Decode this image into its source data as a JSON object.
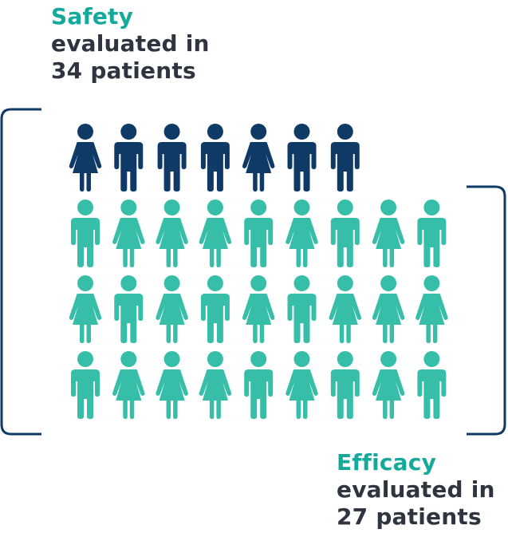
{
  "colors": {
    "accent": "#14a99a",
    "text_dark": "#2f3540",
    "safety_only": "#0f3a66",
    "both": "#37bea9",
    "bracket": "#0f3a66"
  },
  "safety": {
    "heading": "Safety",
    "line1": "evaluated in",
    "line2": "34 patients"
  },
  "efficacy": {
    "heading": "Efficacy",
    "line1": "evaluated in",
    "line2": "27 patients"
  },
  "figures": {
    "row1": [
      "female",
      "male",
      "male",
      "male",
      "female",
      "male",
      "male"
    ],
    "row2": [
      "male",
      "female",
      "female",
      "female",
      "male",
      "female",
      "male",
      "female",
      "male"
    ],
    "row3": [
      "female",
      "male",
      "female",
      "male",
      "female",
      "male",
      "female",
      "female",
      "female"
    ],
    "row4": [
      "male",
      "female",
      "female",
      "female",
      "male",
      "female",
      "male",
      "female",
      "male"
    ]
  },
  "icon": {
    "safety_only": "person-icon",
    "both": "person-icon"
  }
}
